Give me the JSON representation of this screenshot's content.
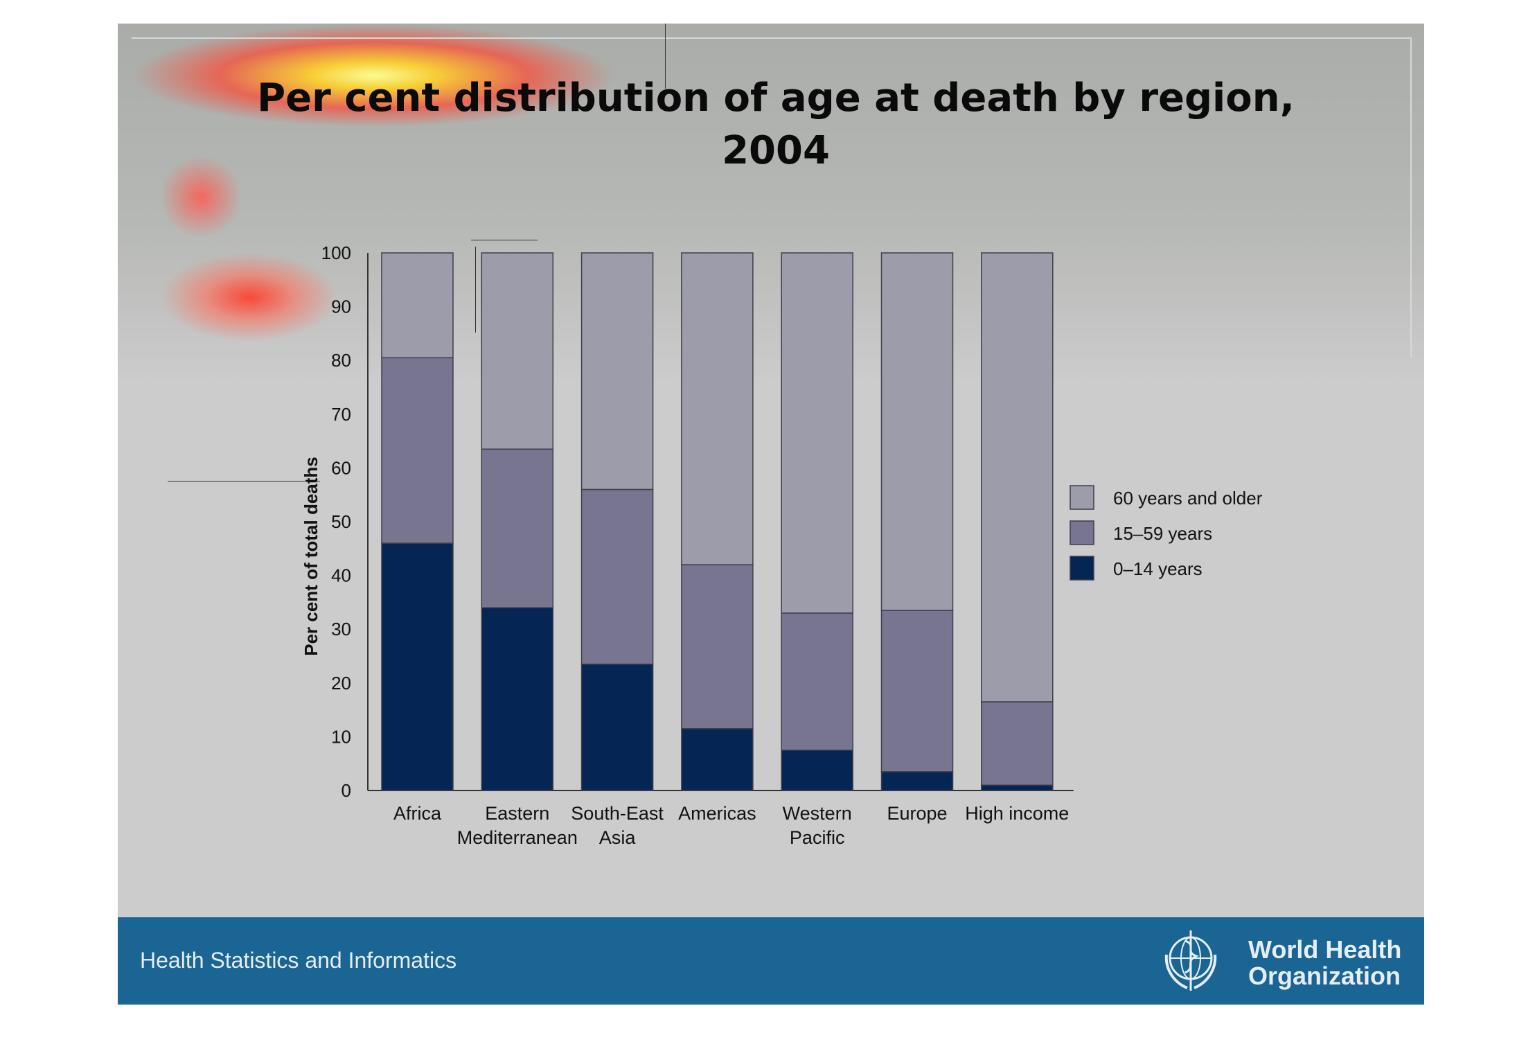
{
  "slide": {
    "title_line1": "Per cent distribution of age at death by region,",
    "title_line2": "2004",
    "footer_text": "Health Statistics and Informatics",
    "org_name_line1": "World Health",
    "org_name_line2": "Organization",
    "org_logo_icon": "who-emblem-icon",
    "colors": {
      "footer": "#1a6594",
      "slide_background": "#cccccc"
    }
  },
  "chart_data": {
    "type": "bar",
    "stacked": true,
    "title": "Per cent distribution of age at death by region, 2004",
    "ylabel": "Per cent of total deaths",
    "xlabel": "",
    "ylim": [
      0,
      100
    ],
    "yticks": [
      0,
      10,
      20,
      30,
      40,
      50,
      60,
      70,
      80,
      90,
      100
    ],
    "categories": [
      [
        "Africa"
      ],
      [
        "Eastern",
        "Mediterranean"
      ],
      [
        "South-East",
        "Asia"
      ],
      [
        "Americas"
      ],
      [
        "Western",
        "Pacific"
      ],
      [
        "Europe"
      ],
      [
        "High income"
      ]
    ],
    "series": [
      {
        "name": "0–14 years",
        "color": "#052654",
        "values": [
          46,
          34,
          23.5,
          11.5,
          7.5,
          3.5,
          1
        ]
      },
      {
        "name": "15–59 years",
        "color": "#777590",
        "values": [
          34.5,
          29.5,
          32.5,
          30.5,
          25.5,
          30,
          15.5
        ]
      },
      {
        "name": "60 years and older",
        "color": "#9d9cab",
        "values": [
          19.5,
          36.5,
          44,
          58,
          67,
          66.5,
          83.5
        ]
      }
    ],
    "legend": {
      "position": "right",
      "order": [
        "60 years and older",
        "15–59 years",
        "0–14 years"
      ]
    },
    "grid": false
  }
}
